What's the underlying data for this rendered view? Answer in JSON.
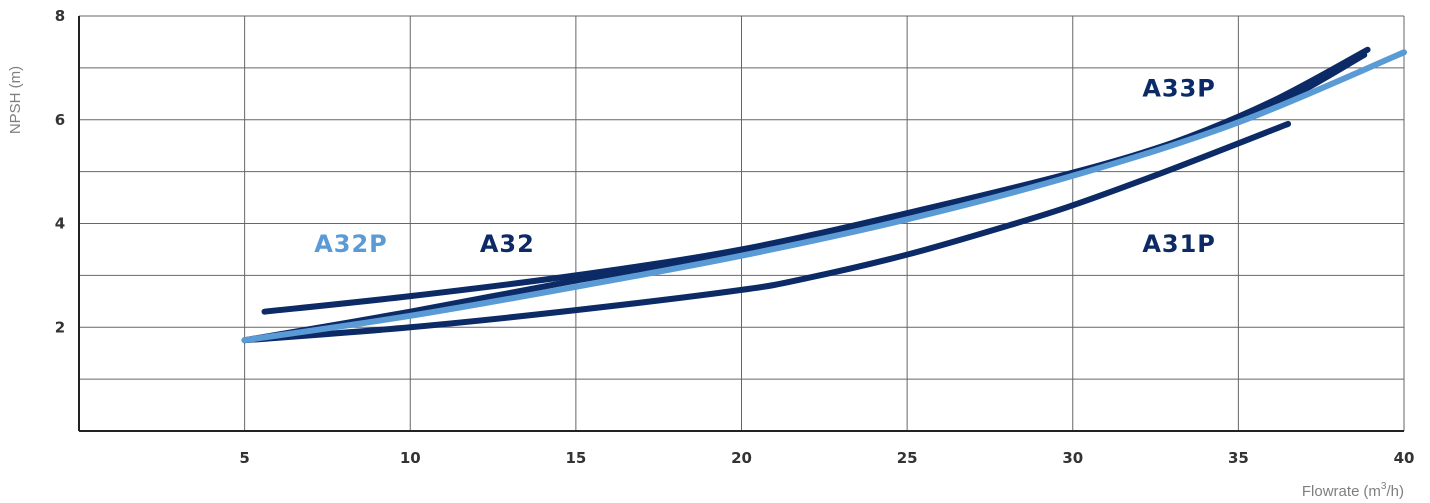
{
  "chart_data": {
    "type": "line",
    "xlabel": "Flowrate",
    "xlabel_unit": "(m",
    "xlabel_unit_sup": "3",
    "xlabel_unit_end": "/h)",
    "ylabel": "NPSH (m)",
    "xlim": [
      0,
      40
    ],
    "ylim": [
      0,
      8
    ],
    "x_ticks": [
      5,
      10,
      15,
      20,
      25,
      30,
      35,
      40
    ],
    "x_tick_labels": [
      "5",
      "10",
      "15",
      "20",
      "25",
      "30",
      "35",
      "40"
    ],
    "y_ticks": [
      2,
      4,
      6,
      8
    ],
    "y_tick_labels": [
      "2",
      "4",
      "6",
      "8"
    ],
    "grid": true,
    "series": [
      {
        "name": "A31P",
        "color": "#0b2a66",
        "x": [
          5,
          10,
          15,
          20,
          22,
          25,
          28,
          30,
          33,
          36.5
        ],
        "y": [
          1.75,
          2.0,
          2.33,
          2.72,
          2.95,
          3.4,
          3.95,
          4.35,
          5.05,
          5.92
        ]
      },
      {
        "name": "A32",
        "color": "#0b2a66",
        "x": [
          5.6,
          10,
          15,
          20,
          25,
          30,
          33,
          36,
          38.8
        ],
        "y": [
          2.3,
          2.6,
          3.0,
          3.5,
          4.2,
          4.98,
          5.55,
          6.25,
          7.25
        ]
      },
      {
        "name": "A32P",
        "color": "#5b9bd5",
        "x": [
          5,
          10,
          15,
          20,
          25,
          30,
          35,
          40
        ],
        "y": [
          1.75,
          2.22,
          2.78,
          3.38,
          4.08,
          4.92,
          5.95,
          7.3
        ]
      },
      {
        "name": "A33P",
        "color": "#0b2a66",
        "x": [
          5,
          10,
          15,
          20,
          25,
          30,
          33,
          36,
          38.9
        ],
        "y": [
          1.75,
          2.3,
          2.9,
          3.45,
          4.15,
          4.95,
          5.55,
          6.35,
          7.35
        ]
      }
    ],
    "labels": [
      {
        "text": "A32P",
        "x": 7.1,
        "y": 3.45,
        "color": "#5b9bd5"
      },
      {
        "text": "A32",
        "x": 12.1,
        "y": 3.45,
        "color": "#0b2a66"
      },
      {
        "text": "A33P",
        "x": 32.1,
        "y": 6.45,
        "color": "#0b2a66"
      },
      {
        "text": "A31P",
        "x": 32.1,
        "y": 3.45,
        "color": "#0b2a66"
      }
    ]
  }
}
